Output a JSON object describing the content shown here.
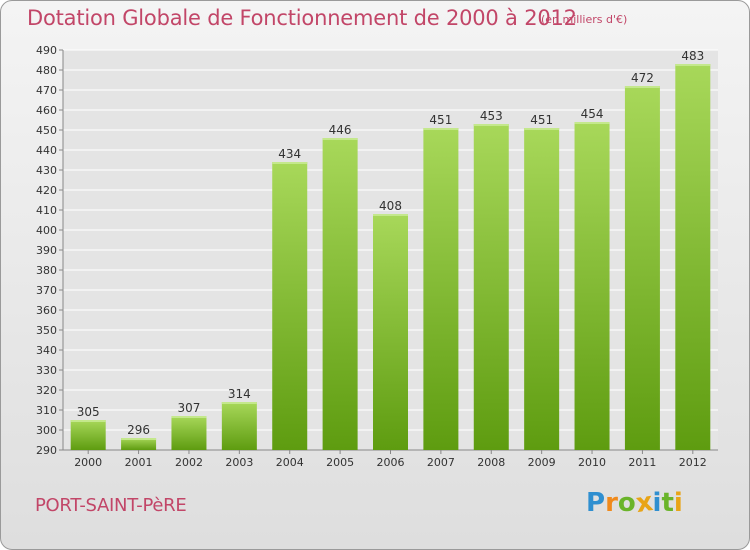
{
  "title": "Dotation Globale de Fonctionnement de 2000 à 2012",
  "subtitle": "(en milliers d'€)",
  "commune": "PORT-SAINT-PèRE",
  "logo": {
    "text": "Proxiti",
    "letters": [
      "P",
      "r",
      "o",
      "x",
      "i",
      "t",
      "i"
    ],
    "colors": [
      "#2f8fd0",
      "#f08a1c",
      "#6ab42a",
      "#e8a417",
      "#2f8fd0",
      "#6ab42a",
      "#e8a417"
    ]
  },
  "colors": {
    "bar_light": "#a8d85a",
    "bar_dark": "#5e9c10",
    "text_accent": "#c24668",
    "grid": "#ffffff"
  },
  "chart_data": {
    "type": "bar",
    "title": "Dotation Globale de Fonctionnement de 2000 à 2012",
    "subtitle": "(en milliers d'€)",
    "categories": [
      "2000",
      "2001",
      "2002",
      "2003",
      "2004",
      "2005",
      "2006",
      "2007",
      "2008",
      "2009",
      "2010",
      "2011",
      "2012"
    ],
    "values": [
      305,
      296,
      307,
      314,
      434,
      446,
      408,
      451,
      453,
      451,
      454,
      472,
      483
    ],
    "ylim": [
      290,
      490
    ],
    "ytick_step": 10,
    "grid": true,
    "legend": "none"
  }
}
